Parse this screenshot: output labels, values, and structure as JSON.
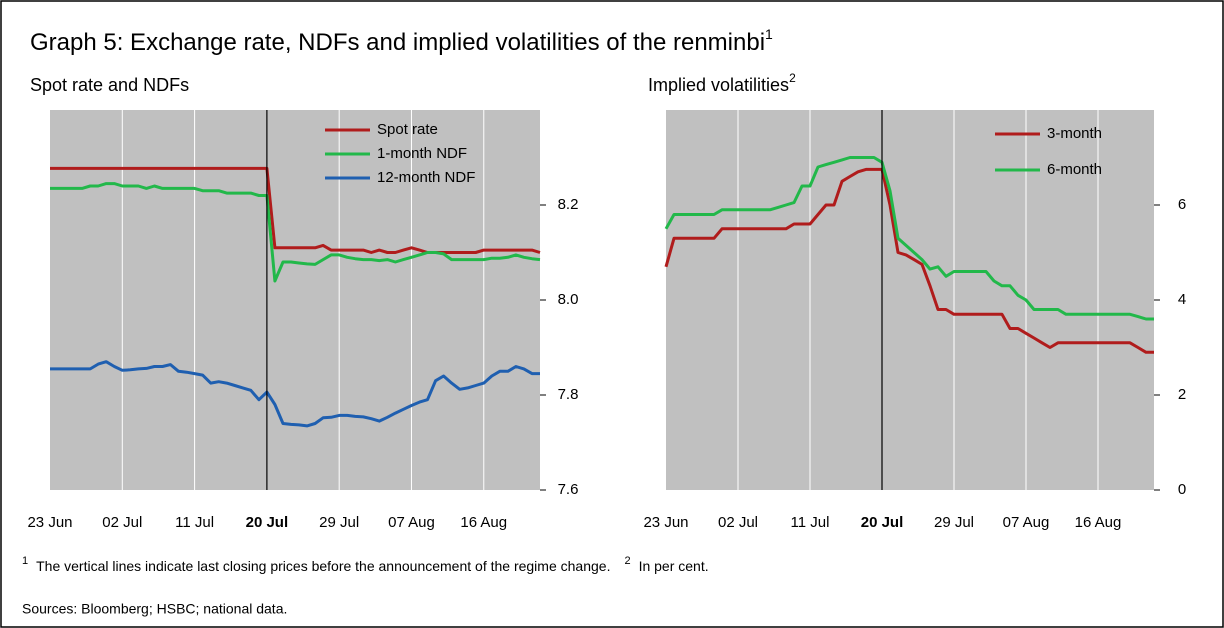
{
  "title": "Graph 5: Exchange rate, NDFs and implied volatilities of the renminbi",
  "title_note": "1",
  "chart_data": [
    {
      "type": "line",
      "subtitle": "Spot rate and NDFs",
      "event_date": "20 Jul",
      "x": [
        "23 Jun",
        "24 Jun",
        "25 Jun",
        "26 Jun",
        "27 Jun",
        "28 Jun",
        "29 Jun",
        "30 Jun",
        "01 Jul",
        "02 Jul",
        "03 Jul",
        "04 Jul",
        "05 Jul",
        "06 Jul",
        "07 Jul",
        "08 Jul",
        "09 Jul",
        "10 Jul",
        "11 Jul",
        "12 Jul",
        "13 Jul",
        "14 Jul",
        "15 Jul",
        "16 Jul",
        "17 Jul",
        "18 Jul",
        "19 Jul",
        "20 Jul",
        "21 Jul",
        "22 Jul",
        "23 Jul",
        "24 Jul",
        "25 Jul",
        "26 Jul",
        "27 Jul",
        "28 Jul",
        "29 Jul",
        "30 Jul",
        "31 Jul",
        "01 Aug",
        "02 Aug",
        "03 Aug",
        "04 Aug",
        "05 Aug",
        "06 Aug",
        "07 Aug",
        "08 Aug",
        "09 Aug",
        "10 Aug",
        "11 Aug",
        "12 Aug",
        "13 Aug",
        "14 Aug",
        "15 Aug",
        "16 Aug",
        "17 Aug",
        "18 Aug",
        "19 Aug",
        "20 Aug",
        "21 Aug",
        "22 Aug",
        "23 Aug"
      ],
      "xticks": [
        "23 Jun",
        "02 Jul",
        "11 Jul",
        "20 Jul",
        "29 Jul",
        "07 Aug",
        "16 Aug"
      ],
      "ylim": [
        7.6,
        8.4
      ],
      "yticks": [
        7.6,
        7.8,
        {
          "value": 8,
          "label": "8.0"
        },
        8.2
      ],
      "series": [
        {
          "name": "Spot rate",
          "color": "#b01c1c",
          "values": [
            8.277,
            8.277,
            8.277,
            8.277,
            8.277,
            8.277,
            8.277,
            8.277,
            8.277,
            8.277,
            8.277,
            8.277,
            8.277,
            8.277,
            8.277,
            8.277,
            8.277,
            8.277,
            8.277,
            8.277,
            8.277,
            8.277,
            8.277,
            8.277,
            8.277,
            8.277,
            8.277,
            8.277,
            8.11,
            8.11,
            8.11,
            8.11,
            8.11,
            8.11,
            8.115,
            8.105,
            8.105,
            8.105,
            8.105,
            8.105,
            8.1,
            8.105,
            8.1,
            8.1,
            8.105,
            8.11,
            8.105,
            8.1,
            8.1,
            8.1,
            8.1,
            8.1,
            8.1,
            8.1,
            8.105,
            8.105,
            8.105,
            8.105,
            8.105,
            8.105,
            8.105,
            8.1
          ]
        },
        {
          "name": "1-month NDF",
          "color": "#22b84a",
          "values": [
            8.235,
            8.235,
            8.235,
            8.235,
            8.235,
            8.24,
            8.24,
            8.245,
            8.245,
            8.24,
            8.24,
            8.24,
            8.235,
            8.24,
            8.235,
            8.235,
            8.235,
            8.235,
            8.235,
            8.23,
            8.23,
            8.23,
            8.225,
            8.225,
            8.225,
            8.225,
            8.22,
            8.22,
            8.04,
            8.08,
            8.08,
            8.078,
            8.076,
            8.075,
            8.085,
            8.095,
            8.095,
            8.09,
            8.087,
            8.085,
            8.085,
            8.083,
            8.085,
            8.08,
            8.085,
            8.09,
            8.095,
            8.1,
            8.1,
            8.097,
            8.085,
            8.085,
            8.085,
            8.085,
            8.085,
            8.088,
            8.088,
            8.09,
            8.095,
            8.09,
            8.087,
            8.085
          ]
        },
        {
          "name": "12-month NDF",
          "color": "#1f5fb0",
          "values": [
            7.855,
            7.855,
            7.855,
            7.855,
            7.855,
            7.855,
            7.865,
            7.87,
            7.86,
            7.852,
            7.853,
            7.855,
            7.856,
            7.86,
            7.86,
            7.864,
            7.85,
            7.848,
            7.845,
            7.842,
            7.825,
            7.828,
            7.825,
            7.82,
            7.815,
            7.81,
            7.79,
            7.806,
            7.78,
            7.74,
            7.738,
            7.737,
            7.735,
            7.74,
            7.752,
            7.753,
            7.757,
            7.757,
            7.755,
            7.754,
            7.75,
            7.745,
            7.753,
            7.762,
            7.77,
            7.778,
            7.785,
            7.79,
            7.83,
            7.84,
            7.825,
            7.812,
            7.815,
            7.82,
            7.825,
            7.84,
            7.85,
            7.85,
            7.86,
            7.855,
            7.845,
            7.845
          ]
        }
      ]
    },
    {
      "type": "line",
      "subtitle": "Implied volatilities",
      "subtitle_note": "2",
      "event_date": "20 Jul",
      "x": [
        "23 Jun",
        "24 Jun",
        "25 Jun",
        "26 Jun",
        "27 Jun",
        "28 Jun",
        "29 Jun",
        "30 Jun",
        "01 Jul",
        "02 Jul",
        "03 Jul",
        "04 Jul",
        "05 Jul",
        "06 Jul",
        "07 Jul",
        "08 Jul",
        "09 Jul",
        "10 Jul",
        "11 Jul",
        "12 Jul",
        "13 Jul",
        "14 Jul",
        "15 Jul",
        "16 Jul",
        "17 Jul",
        "18 Jul",
        "19 Jul",
        "20 Jul",
        "21 Jul",
        "22 Jul",
        "23 Jul",
        "24 Jul",
        "25 Jul",
        "26 Jul",
        "27 Jul",
        "28 Jul",
        "29 Jul",
        "30 Jul",
        "31 Jul",
        "01 Aug",
        "02 Aug",
        "03 Aug",
        "04 Aug",
        "05 Aug",
        "06 Aug",
        "07 Aug",
        "08 Aug",
        "09 Aug",
        "10 Aug",
        "11 Aug",
        "12 Aug",
        "13 Aug",
        "14 Aug",
        "15 Aug",
        "16 Aug",
        "17 Aug",
        "18 Aug",
        "19 Aug",
        "20 Aug",
        "21 Aug",
        "22 Aug",
        "23 Aug"
      ],
      "xticks": [
        "23 Jun",
        "02 Jul",
        "11 Jul",
        "20 Jul",
        "29 Jul",
        "07 Aug",
        "16 Aug"
      ],
      "ylim": [
        0,
        8
      ],
      "yticks": [
        0,
        2,
        4,
        6
      ],
      "series": [
        {
          "name": "3-month",
          "color": "#b01c1c",
          "values": [
            4.7,
            5.3,
            5.3,
            5.3,
            5.3,
            5.3,
            5.3,
            5.5,
            5.5,
            5.5,
            5.5,
            5.5,
            5.5,
            5.5,
            5.5,
            5.5,
            5.6,
            5.6,
            5.6,
            5.8,
            6.0,
            6.0,
            6.5,
            6.6,
            6.7,
            6.75,
            6.75,
            6.75,
            6.0,
            5.0,
            4.95,
            4.85,
            4.75,
            4.3,
            3.8,
            3.8,
            3.7,
            3.7,
            3.7,
            3.7,
            3.7,
            3.7,
            3.7,
            3.4,
            3.4,
            3.3,
            3.2,
            3.1,
            3.0,
            3.1,
            3.1,
            3.1,
            3.1,
            3.1,
            3.1,
            3.1,
            3.1,
            3.1,
            3.1,
            3.0,
            2.9,
            2.9
          ]
        },
        {
          "name": "6-month",
          "color": "#22b84a",
          "values": [
            5.5,
            5.8,
            5.8,
            5.8,
            5.8,
            5.8,
            5.8,
            5.9,
            5.9,
            5.9,
            5.9,
            5.9,
            5.9,
            5.9,
            5.95,
            6.0,
            6.05,
            6.4,
            6.4,
            6.8,
            6.85,
            6.9,
            6.95,
            7.0,
            7.0,
            7.0,
            7.0,
            6.9,
            6.3,
            5.3,
            5.15,
            5.0,
            4.85,
            4.65,
            4.7,
            4.5,
            4.6,
            4.6,
            4.6,
            4.6,
            4.6,
            4.4,
            4.3,
            4.3,
            4.1,
            4.0,
            3.8,
            3.8,
            3.8,
            3.8,
            3.7,
            3.7,
            3.7,
            3.7,
            3.7,
            3.7,
            3.7,
            3.7,
            3.7,
            3.65,
            3.6,
            3.6
          ]
        }
      ]
    }
  ],
  "footnotes": [
    {
      "mark": "1",
      "text": "The vertical lines indicate last closing prices before the announcement of the regime change."
    },
    {
      "mark": "2",
      "text": "In per cent."
    }
  ],
  "sources": "Sources: Bloomberg; HSBC; national data."
}
